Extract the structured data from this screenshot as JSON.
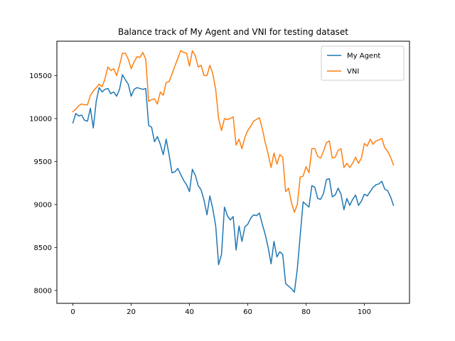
{
  "chart_data": {
    "type": "line",
    "title": "Balance track of My Agent and VNI for testing dataset",
    "xlabel": "",
    "ylabel": "",
    "xlim": [
      -5.5,
      115.5
    ],
    "ylim": [
      7850,
      10900
    ],
    "xticks": [
      0,
      20,
      40,
      60,
      80,
      100
    ],
    "yticks": [
      8000,
      8500,
      9000,
      9500,
      10000,
      10500
    ],
    "grid": false,
    "legend_position": "top-right",
    "x": [
      0,
      1,
      2,
      3,
      4,
      5,
      6,
      7,
      8,
      9,
      10,
      11,
      12,
      13,
      14,
      15,
      16,
      17,
      18,
      19,
      20,
      21,
      22,
      23,
      24,
      25,
      26,
      27,
      28,
      29,
      30,
      31,
      32,
      33,
      34,
      35,
      36,
      37,
      38,
      39,
      40,
      41,
      42,
      43,
      44,
      45,
      46,
      47,
      48,
      49,
      50,
      51,
      52,
      53,
      54,
      55,
      56,
      57,
      58,
      59,
      60,
      61,
      62,
      63,
      64,
      65,
      66,
      67,
      68,
      69,
      70,
      71,
      72,
      73,
      74,
      75,
      76,
      77,
      78,
      79,
      80,
      81,
      82,
      83,
      84,
      85,
      86,
      87,
      88,
      89,
      90,
      91,
      92,
      93,
      94,
      95,
      96,
      97,
      98,
      99,
      100,
      101,
      102,
      103,
      104,
      105,
      106,
      107,
      108,
      109,
      110
    ],
    "series": [
      {
        "name": "My Agent",
        "color": "#1f77b4",
        "values": [
          9950,
          10060,
          10030,
          10040,
          9980,
          9970,
          10120,
          9890,
          10200,
          10360,
          10310,
          10340,
          10350,
          10290,
          10310,
          10260,
          10340,
          10510,
          10450,
          10400,
          10260,
          10340,
          10360,
          10350,
          10340,
          10350,
          9920,
          9900,
          9730,
          9790,
          9700,
          9580,
          9760,
          9580,
          9370,
          9380,
          9420,
          9350,
          9280,
          9230,
          9150,
          9410,
          9340,
          9220,
          9170,
          9050,
          8880,
          9100,
          8950,
          8750,
          8300,
          8420,
          8970,
          8870,
          8820,
          8860,
          8470,
          8750,
          8570,
          8740,
          8770,
          8840,
          8880,
          8870,
          8900,
          8770,
          8650,
          8500,
          8310,
          8570,
          8390,
          8450,
          8420,
          8080,
          8050,
          8020,
          7980,
          8250,
          8640,
          9030,
          9000,
          8970,
          9220,
          9200,
          9070,
          9060,
          9130,
          9290,
          9300,
          9090,
          9110,
          9190,
          9120,
          8940,
          9070,
          8990,
          9060,
          9110,
          8990,
          9040,
          9120,
          9100,
          9150,
          9200,
          9230,
          9240,
          9270,
          9180,
          9160,
          9090,
          8990
        ]
      },
      {
        "name": "VNI",
        "color": "#ff7f0e",
        "values": [
          10080,
          10110,
          10150,
          10170,
          10160,
          10160,
          10270,
          10320,
          10360,
          10400,
          10370,
          10460,
          10600,
          10560,
          10580,
          10500,
          10620,
          10760,
          10760,
          10690,
          10580,
          10660,
          10720,
          10710,
          10770,
          10690,
          10200,
          10220,
          10230,
          10170,
          10310,
          10270,
          10420,
          10430,
          10520,
          10610,
          10700,
          10790,
          10770,
          10760,
          10610,
          10790,
          10730,
          10600,
          10620,
          10500,
          10500,
          10620,
          10520,
          10340,
          10000,
          9860,
          10000,
          9990,
          10000,
          10020,
          9690,
          9760,
          9650,
          9780,
          9860,
          9910,
          9970,
          9990,
          10010,
          9880,
          9720,
          9590,
          9430,
          9600,
          9470,
          9580,
          9550,
          9150,
          9190,
          9020,
          8910,
          9000,
          9320,
          9330,
          9440,
          9370,
          9650,
          9650,
          9560,
          9540,
          9620,
          9720,
          9740,
          9540,
          9550,
          9630,
          9650,
          9430,
          9480,
          9430,
          9480,
          9550,
          9480,
          9540,
          9710,
          9680,
          9760,
          9700,
          9740,
          9750,
          9770,
          9660,
          9620,
          9550,
          9460
        ]
      }
    ]
  }
}
